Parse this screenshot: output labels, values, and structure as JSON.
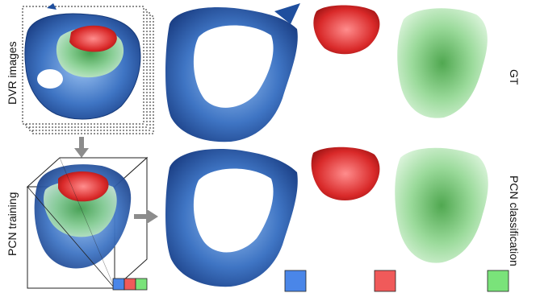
{
  "labels": {
    "dvr_images": "DVR images",
    "pcn_training": "PCN training",
    "gt": "GT",
    "pcn_classification": "PCN classification"
  },
  "colors": {
    "blue": "#4a86e8",
    "red": "#f05a5a",
    "green": "#7ae37a",
    "blue_dark": "#1f4f9e",
    "red_dark": "#b81b1b",
    "green_dark": "#3c9e3c",
    "arrow": "#8c8c8c"
  },
  "legend_swatches": [
    "blue",
    "red",
    "green"
  ]
}
